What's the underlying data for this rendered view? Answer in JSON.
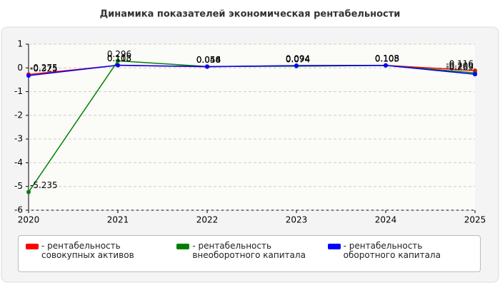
{
  "chart_data": {
    "type": "line",
    "title": "Динамика показателей экономическая рентабельности",
    "x": [
      2020,
      2021,
      2022,
      2023,
      2024,
      2025
    ],
    "xlim": [
      2020,
      2025
    ],
    "xticks": [
      2020,
      2021,
      2022,
      2023,
      2024,
      2025
    ],
    "ylim": [
      -6,
      1
    ],
    "yticks": [
      -6,
      -5,
      -4,
      -3,
      -2,
      -1,
      0,
      1
    ],
    "grid": true,
    "series": [
      {
        "name": "- рентабельность совокупных активов",
        "color": "#ff0000",
        "values": [
          -0.275,
          0.108,
          0.048,
          0.094,
          0.108,
          -0.116
        ]
      },
      {
        "name": "- рентабельность внеоборотного капитала",
        "color": "#008000",
        "values": [
          -5.235,
          0.296,
          0.056,
          0.074,
          0.103,
          -0.209
        ]
      },
      {
        "name": "- рентабельность оборотного капитала",
        "color": "#0000ff",
        "values": [
          -0.325,
          0.113,
          0.054,
          0.094,
          0.105,
          -0.269
        ]
      }
    ]
  }
}
